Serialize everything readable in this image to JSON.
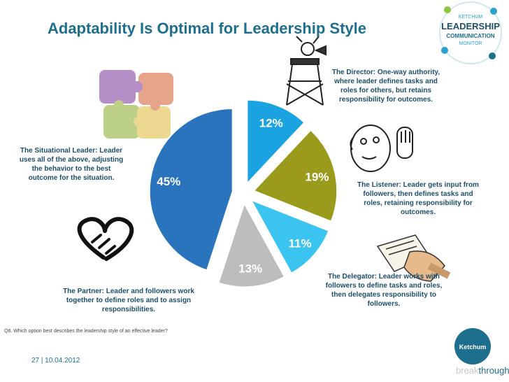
{
  "title": "Adaptability Is Optimal for Leadership Style",
  "chart_data": {
    "type": "pie",
    "title": "",
    "slices": [
      {
        "label": "The Director",
        "value": 12,
        "display": "12%",
        "color": "#1aa3e0"
      },
      {
        "label": "The Listener",
        "value": 19,
        "display": "19%",
        "color": "#9a9a1c"
      },
      {
        "label": "The Delegator",
        "value": 11,
        "display": "11%",
        "color": "#3cc4f0"
      },
      {
        "label": "The Partner",
        "value": 13,
        "display": "13%",
        "color": "#bdbdbd"
      },
      {
        "label": "The Situational Leader",
        "value": 45,
        "display": "45%",
        "color": "#2a74be"
      }
    ]
  },
  "captions": {
    "director": "The Director: One-way authority, where leader defines tasks and roles for others, but retains responsibility for outcomes.",
    "listener": "The Listener: Leader gets input from followers, then defines tasks and roles, retaining responsibility for outcomes.",
    "delegator": "The Delegator: Leader works with followers to define tasks and roles, then delegates responsibility to followers.",
    "partner": "The Partner: Leader and followers work together to define roles and to assign responsibilities.",
    "situational": "The Situational Leader: Leader uses all of the above, adjusting the behavior to the best outcome for the situation."
  },
  "logo": {
    "line1": "KETCHUM",
    "line2": "LEADERSHIP",
    "line3": "COMMUNICATION",
    "line4": "MONITOR"
  },
  "question": "Q6. Which option best describes the leadership style of an effective leader?",
  "footer": "27 | 10.04.2012",
  "brand": {
    "badge": "Ketchum",
    "prefix": "break",
    "suffix": "through"
  },
  "colors": {
    "accent": "#1e6e8e"
  }
}
